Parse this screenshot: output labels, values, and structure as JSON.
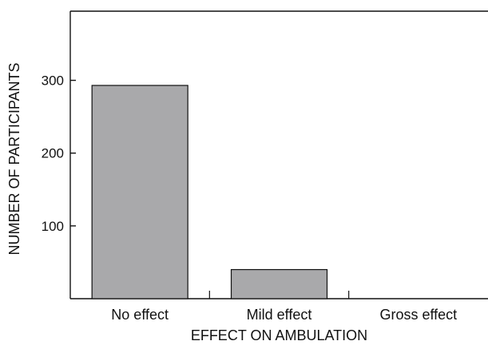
{
  "chart_data": {
    "type": "bar",
    "title": "",
    "xlabel": "EFFECT ON AMBULATION",
    "ylabel": "NUMBER OF PARTICIPANTS",
    "categories": [
      "No effect",
      "Mild effect",
      "Gross effect"
    ],
    "values": [
      293,
      40,
      0
    ],
    "yticks": [
      100,
      200,
      300
    ],
    "ylim": [
      0,
      395
    ],
    "grid": false,
    "legend": "none",
    "bar_color": "#a9a9ab",
    "bar_stroke": "#111111"
  }
}
